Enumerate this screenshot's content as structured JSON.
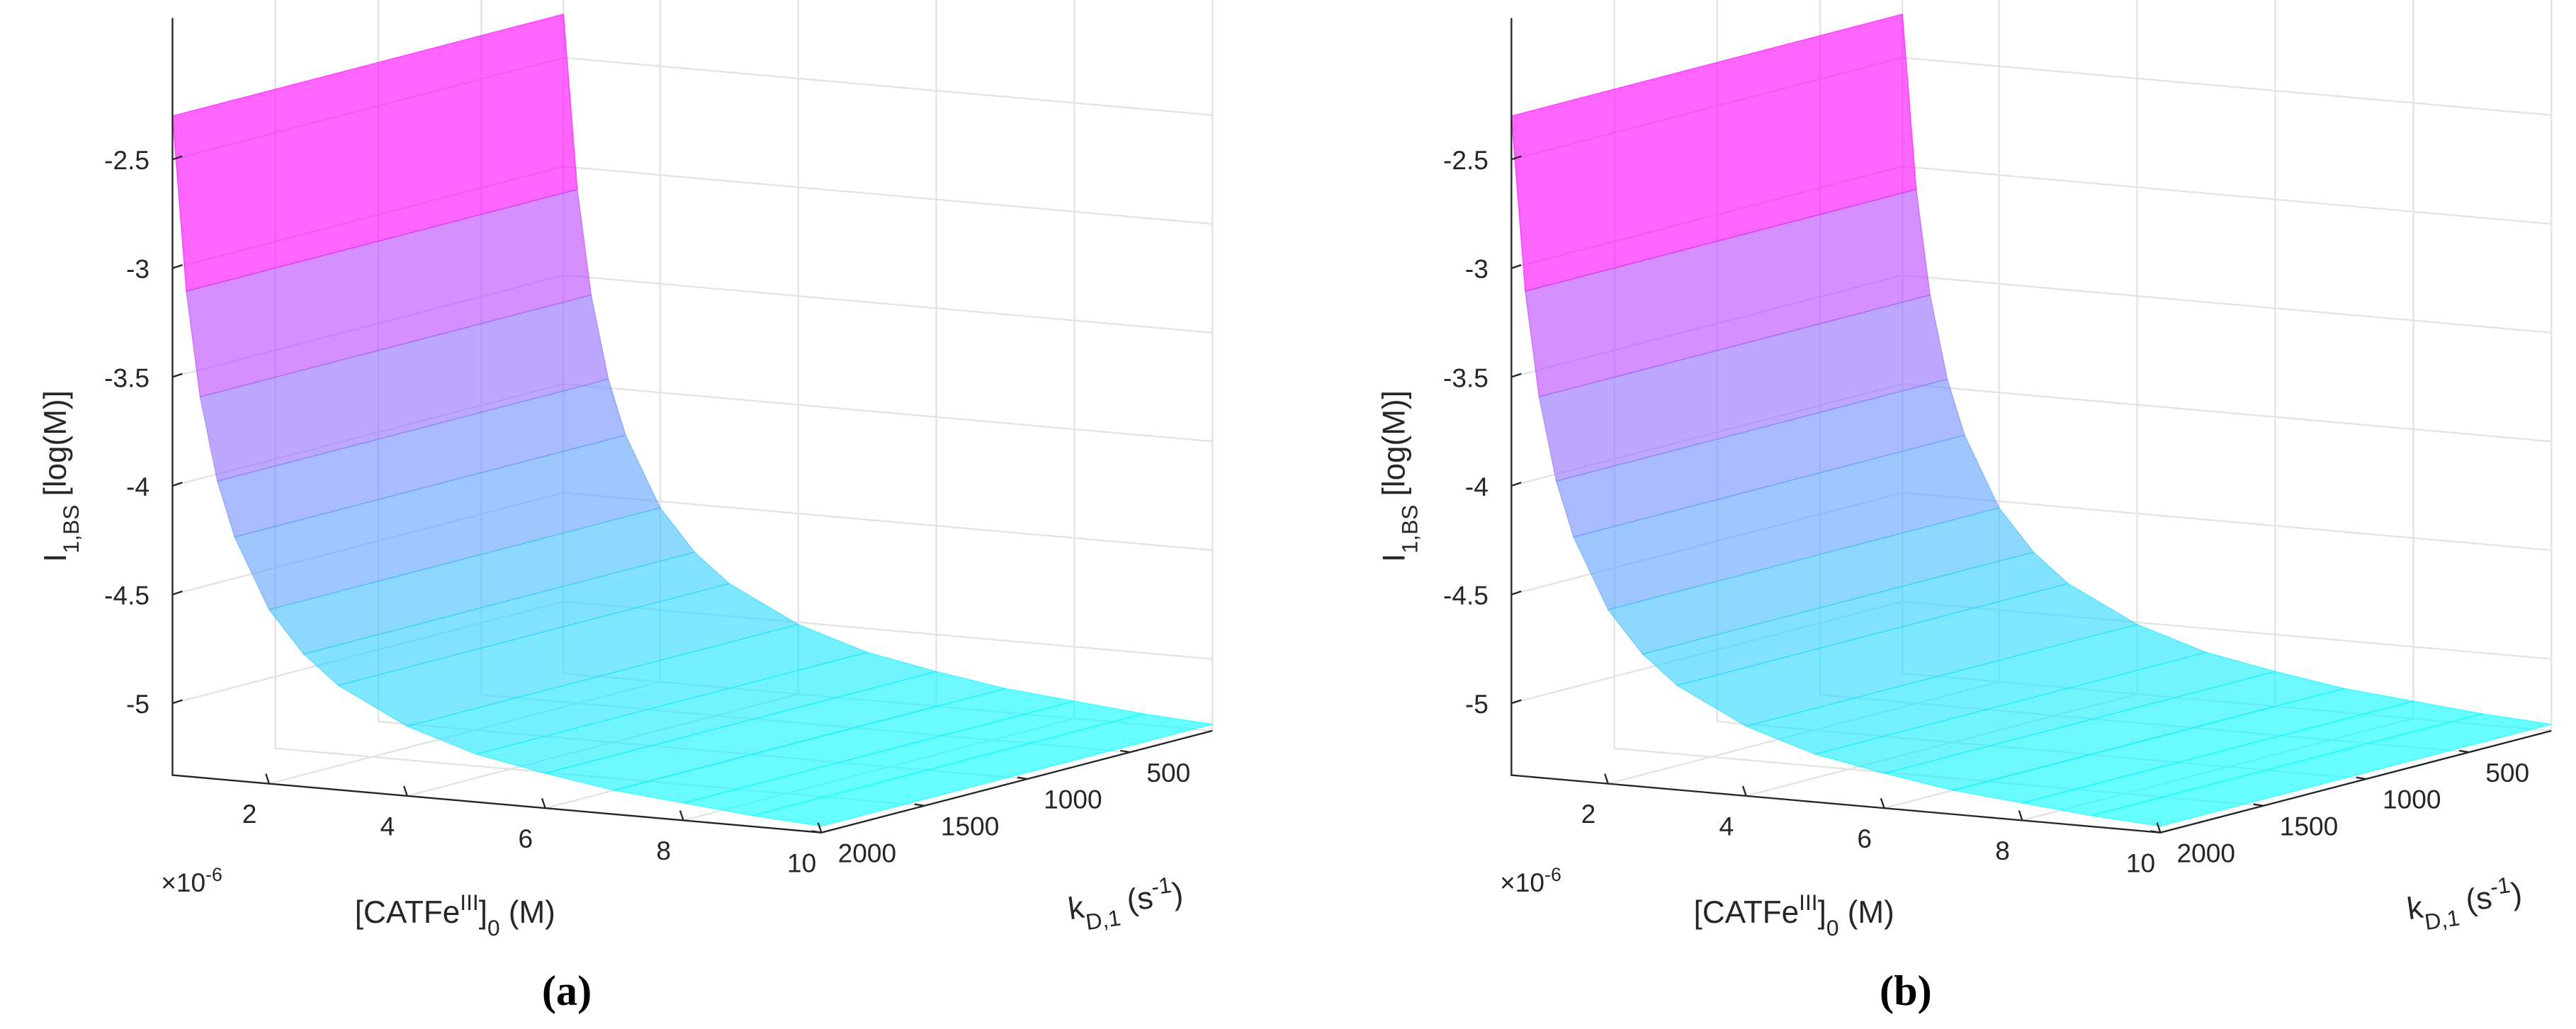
{
  "chart_data": [
    {
      "type": "surface",
      "panel_label": "(a)",
      "xlabel": [
        "[CATFe",
        "III",
        "]",
        "0",
        " (M)"
      ],
      "ylabel": [
        "k",
        "D,1",
        " (s",
        "-1",
        ")"
      ],
      "zlabel": [
        "I",
        "1,BS",
        " [log(M)]"
      ],
      "x_multiplier": [
        "×10",
        "-6"
      ],
      "x": [
        0.6,
        0.8,
        1,
        1.25,
        1.5,
        2,
        2.5,
        3,
        4,
        5,
        6,
        7,
        8,
        9,
        10
      ],
      "y": [
        100,
        2000
      ],
      "z": [
        [
          -2.3,
          -2.3
        ],
        [
          -3.1,
          -3.1
        ],
        [
          -3.58,
          -3.58
        ],
        [
          -3.96,
          -3.96
        ],
        [
          -4.21,
          -4.21
        ],
        [
          -4.53,
          -4.53
        ],
        [
          -4.72,
          -4.72
        ],
        [
          -4.85,
          -4.85
        ],
        [
          -5.01,
          -5.01
        ],
        [
          -5.11,
          -5.11
        ],
        [
          -5.17,
          -5.17
        ],
        [
          -5.22,
          -5.22
        ],
        [
          -5.25,
          -5.25
        ],
        [
          -5.28,
          -5.28
        ],
        [
          -5.3,
          -5.3
        ]
      ],
      "xlim": [
        0.6,
        10
      ],
      "ylim": [
        100,
        2000
      ],
      "zlim": [
        -5.33,
        -1.85
      ],
      "xticks": [
        2,
        4,
        6,
        8,
        10
      ],
      "yticks": [
        500,
        1000,
        1500,
        2000
      ],
      "zticks": [
        -5,
        -4.5,
        -4,
        -3.5,
        -3,
        -2.5
      ],
      "colormap": [
        "#00ffff",
        "#ff00ff"
      ],
      "grid": true
    },
    {
      "type": "surface",
      "panel_label": "(b)",
      "xlabel": [
        "[CATFe",
        "III",
        "]",
        "0",
        " (M)"
      ],
      "ylabel": [
        "k",
        "D,1",
        " (s",
        "-1",
        ")"
      ],
      "zlabel": [
        "I",
        "1,BS",
        " [log(M)]"
      ],
      "x_multiplier": [
        "×10",
        "-6"
      ],
      "x": [
        0.6,
        0.8,
        1,
        1.25,
        1.5,
        2,
        2.5,
        3,
        4,
        5,
        6,
        7,
        8,
        9,
        10
      ],
      "y": [
        100,
        2000
      ],
      "z": [
        [
          -2.3,
          -2.3
        ],
        [
          -3.1,
          -3.1
        ],
        [
          -3.58,
          -3.58
        ],
        [
          -3.96,
          -3.96
        ],
        [
          -4.21,
          -4.21
        ],
        [
          -4.53,
          -4.53
        ],
        [
          -4.72,
          -4.72
        ],
        [
          -4.85,
          -4.85
        ],
        [
          -5.01,
          -5.01
        ],
        [
          -5.11,
          -5.11
        ],
        [
          -5.17,
          -5.17
        ],
        [
          -5.22,
          -5.22
        ],
        [
          -5.25,
          -5.25
        ],
        [
          -5.28,
          -5.28
        ],
        [
          -5.3,
          -5.3
        ]
      ],
      "xlim": [
        0.6,
        10
      ],
      "ylim": [
        100,
        2000
      ],
      "zlim": [
        -5.33,
        -1.85
      ],
      "xticks": [
        2,
        4,
        6,
        8,
        10
      ],
      "yticks": [
        500,
        1000,
        1500,
        2000
      ],
      "zticks": [
        -5,
        -4.5,
        -4,
        -3.5,
        -3,
        -2.5
      ],
      "colormap": [
        "#00ffff",
        "#ff00ff"
      ],
      "grid": true
    }
  ]
}
